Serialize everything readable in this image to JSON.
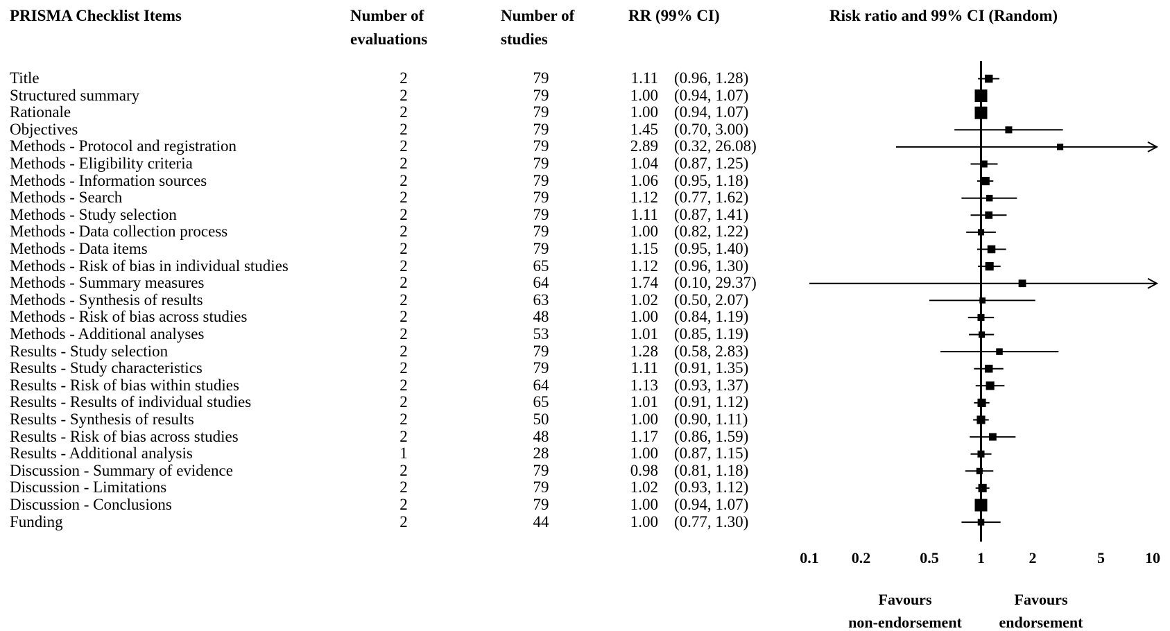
{
  "headers": {
    "items": "PRISMA  Checklist Items",
    "evaluations": [
      "Number  of",
      "evaluations"
    ],
    "studies": [
      "Number  of",
      "studies"
    ],
    "rr": "RR (99% CI)",
    "plot": "Risk ratio and  99% CI (Random)"
  },
  "rows": [
    {
      "label": "Title",
      "evals": "2",
      "studies": "79",
      "rr": "1.11",
      "ci": "(0.96,  1.28)"
    },
    {
      "label": "Structured summary",
      "evals": "2",
      "studies": "79",
      "rr": "1.00",
      "ci": "(0.94,  1.07)"
    },
    {
      "label": "Rationale",
      "evals": "2",
      "studies": "79",
      "rr": "1.00",
      "ci": "(0.94,  1.07)"
    },
    {
      "label": "Objectives",
      "evals": "2",
      "studies": "79",
      "rr": "1.45",
      "ci": "(0.70,  3.00)"
    },
    {
      "label": "Methods - Protocol and registration",
      "evals": "2",
      "studies": "79",
      "rr": "2.89",
      "ci": "(0.32,  26.08)"
    },
    {
      "label": "Methods - Eligibility  criteria",
      "evals": "2",
      "studies": "79",
      "rr": "1.04",
      "ci": "(0.87,  1.25)"
    },
    {
      "label": "Methods - Information  sources",
      "evals": "2",
      "studies": "79",
      "rr": "1.06",
      "ci": "(0.95,  1.18)"
    },
    {
      "label": "Methods - Search",
      "evals": "2",
      "studies": "79",
      "rr": "1.12",
      "ci": "(0.77,  1.62)"
    },
    {
      "label": "Methods - Study selection",
      "evals": "2",
      "studies": "79",
      "rr": "1.11",
      "ci": "(0.87,  1.41)"
    },
    {
      "label": "Methods - Data collection process",
      "evals": "2",
      "studies": "79",
      "rr": "1.00",
      "ci": "(0.82,  1.22)"
    },
    {
      "label": "Methods - Data items",
      "evals": "2",
      "studies": "79",
      "rr": "1.15",
      "ci": "(0.95,  1.40)"
    },
    {
      "label": "Methods - Risk of bias in individual  studies",
      "evals": "2",
      "studies": "65",
      "rr": "1.12",
      "ci": "(0.96,  1.30)"
    },
    {
      "label": "Methods - Summary  measures",
      "evals": "2",
      "studies": "64",
      "rr": "1.74",
      "ci": "(0.10,  29.37)"
    },
    {
      "label": "Methods - Synthesis of results",
      "evals": "2",
      "studies": "63",
      "rr": "1.02",
      "ci": "(0.50,  2.07)"
    },
    {
      "label": "Methods - Risk of bias across studies",
      "evals": "2",
      "studies": "48",
      "rr": "1.00",
      "ci": "(0.84,  1.19)"
    },
    {
      "label": "Methods - Additional analyses",
      "evals": "2",
      "studies": "53",
      "rr": "1.01",
      "ci": "(0.85,  1.19)"
    },
    {
      "label": "Results - Study selection",
      "evals": "2",
      "studies": "79",
      "rr": "1.28",
      "ci": "(0.58,  2.83)"
    },
    {
      "label": "Results - Study characteristics",
      "evals": "2",
      "studies": "79",
      "rr": "1.11",
      "ci": "(0.91,  1.35)"
    },
    {
      "label": "Results - Risk  of bias within  studies",
      "evals": "2",
      "studies": "64",
      "rr": "1.13",
      "ci": "(0.93,  1.37)"
    },
    {
      "label": "Results - Results of individual  studies",
      "evals": "2",
      "studies": "65",
      "rr": "1.01",
      "ci": "(0.91,  1.12)"
    },
    {
      "label": "Results - Synthesis of results",
      "evals": "2",
      "studies": "50",
      "rr": "1.00",
      "ci": "(0.90,  1.11)"
    },
    {
      "label": "Results - Risk  of bias across studies",
      "evals": "2",
      "studies": "48",
      "rr": "1.17",
      "ci": "(0.86,  1.59)"
    },
    {
      "label": "Results - Additional analysis",
      "evals": "1",
      "studies": "28",
      "rr": "1.00",
      "ci": "(0.87,  1.15)"
    },
    {
      "label": "Discussion - Summary  of evidence",
      "evals": "2",
      "studies": "79",
      "rr": "0.98",
      "ci": "(0.81,  1.18)"
    },
    {
      "label": "Discussion - Limitations",
      "evals": "2",
      "studies": "79",
      "rr": "1.02",
      "ci": "(0.93,  1.12)"
    },
    {
      "label": "Discussion - Conclusions",
      "evals": "2",
      "studies": "79",
      "rr": "1.00",
      "ci": "(0.94,  1.07)"
    },
    {
      "label": "Funding",
      "evals": "2",
      "studies": "44",
      "rr": "1.00",
      "ci": "(0.77,  1.30)"
    }
  ],
  "favours": {
    "left": [
      "Favours",
      "non-endorsement"
    ],
    "right": [
      "Favours",
      "endorsement"
    ]
  },
  "chart_data": {
    "type": "forest",
    "title": "Risk ratio and  99% CI (Random)",
    "x_scale": "log",
    "xlim": [
      0.1,
      10
    ],
    "reference_line": 1,
    "xticks": [
      0.1,
      0.2,
      0.5,
      1,
      2,
      5,
      10
    ],
    "xtick_labels": [
      "0.1",
      "0.2",
      "0.5",
      "1",
      "2",
      "5",
      "10"
    ],
    "points": [
      {
        "label": "Title",
        "rr": 1.11,
        "lower": 0.96,
        "upper": 1.28,
        "weight": 0.25
      },
      {
        "label": "Structured summary",
        "rr": 1.0,
        "lower": 0.94,
        "upper": 1.07,
        "weight": 1.0
      },
      {
        "label": "Rationale",
        "rr": 1.0,
        "lower": 0.94,
        "upper": 1.07,
        "weight": 1.0
      },
      {
        "label": "Objectives",
        "rr": 1.45,
        "lower": 0.7,
        "upper": 3.0,
        "weight": 0.15
      },
      {
        "label": "Methods - Protocol and registration",
        "rr": 2.89,
        "lower": 0.32,
        "upper": 26.08,
        "weight": 0.1,
        "arrow_right": true
      },
      {
        "label": "Methods - Eligibility  criteria",
        "rr": 1.04,
        "lower": 0.87,
        "upper": 1.25,
        "weight": 0.15
      },
      {
        "label": "Methods - Information  sources",
        "rr": 1.06,
        "lower": 0.95,
        "upper": 1.18,
        "weight": 0.3
      },
      {
        "label": "Methods - Search",
        "rr": 1.12,
        "lower": 0.77,
        "upper": 1.62,
        "weight": 0.12
      },
      {
        "label": "Methods - Study selection",
        "rr": 1.11,
        "lower": 0.87,
        "upper": 1.41,
        "weight": 0.2
      },
      {
        "label": "Methods - Data collection process",
        "rr": 1.0,
        "lower": 0.82,
        "upper": 1.22,
        "weight": 0.1
      },
      {
        "label": "Methods - Data items",
        "rr": 1.15,
        "lower": 0.95,
        "upper": 1.4,
        "weight": 0.25
      },
      {
        "label": "Methods - Risk of bias in individual  studies",
        "rr": 1.12,
        "lower": 0.96,
        "upper": 1.3,
        "weight": 0.3
      },
      {
        "label": "Methods - Summary  measures",
        "rr": 1.74,
        "lower": 0.1,
        "upper": 29.37,
        "weight": 0.2,
        "arrow_right": true
      },
      {
        "label": "Methods - Synthesis of results",
        "rr": 1.02,
        "lower": 0.5,
        "upper": 2.07,
        "weight": 0.08
      },
      {
        "label": "Methods - Risk of bias across studies",
        "rr": 1.0,
        "lower": 0.84,
        "upper": 1.19,
        "weight": 0.15
      },
      {
        "label": "Methods - Additional analyses",
        "rr": 1.01,
        "lower": 0.85,
        "upper": 1.19,
        "weight": 0.1
      },
      {
        "label": "Results - Study selection",
        "rr": 1.28,
        "lower": 0.58,
        "upper": 2.83,
        "weight": 0.12
      },
      {
        "label": "Results - Study characteristics",
        "rr": 1.11,
        "lower": 0.91,
        "upper": 1.35,
        "weight": 0.25
      },
      {
        "label": "Results - Risk  of bias within  studies",
        "rr": 1.13,
        "lower": 0.93,
        "upper": 1.37,
        "weight": 0.3
      },
      {
        "label": "Results - Results of individual  studies",
        "rr": 1.01,
        "lower": 0.91,
        "upper": 1.12,
        "weight": 0.3
      },
      {
        "label": "Results - Synthesis of results",
        "rr": 1.0,
        "lower": 0.9,
        "upper": 1.11,
        "weight": 0.3
      },
      {
        "label": "Results - Risk  of bias across studies",
        "rr": 1.17,
        "lower": 0.86,
        "upper": 1.59,
        "weight": 0.2
      },
      {
        "label": "Results - Additional analysis",
        "rr": 1.0,
        "lower": 0.87,
        "upper": 1.15,
        "weight": 0.15
      },
      {
        "label": "Discussion - Summary  of evidence",
        "rr": 0.98,
        "lower": 0.81,
        "upper": 1.18,
        "weight": 0.1
      },
      {
        "label": "Discussion - Limitations",
        "rr": 1.02,
        "lower": 0.93,
        "upper": 1.12,
        "weight": 0.3
      },
      {
        "label": "Discussion - Conclusions",
        "rr": 1.0,
        "lower": 0.94,
        "upper": 1.07,
        "weight": 1.0
      },
      {
        "label": "Funding",
        "rr": 1.0,
        "lower": 0.77,
        "upper": 1.3,
        "weight": 0.12
      }
    ]
  }
}
